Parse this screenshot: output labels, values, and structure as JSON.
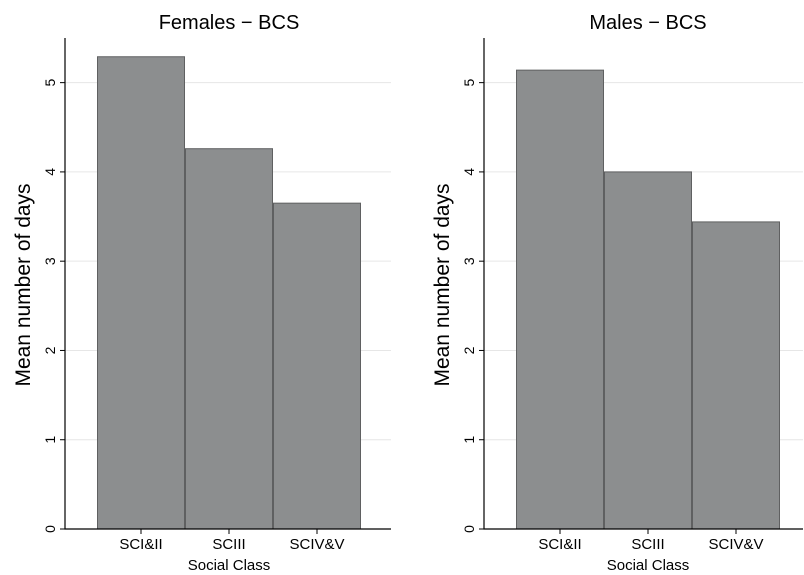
{
  "chart_data": [
    {
      "type": "bar",
      "title": "Females − BCS",
      "xlabel": "Social Class",
      "ylabel": "Mean number of days",
      "categories": [
        "SCI&II",
        "SCIII",
        "SCIV&V"
      ],
      "values": [
        5.29,
        4.26,
        3.65
      ],
      "ylim": [
        0,
        5.5
      ],
      "yticks": [
        "0",
        "1",
        "2",
        "3",
        "4",
        "5"
      ],
      "grid": true,
      "bar_color": "#8c8e8f"
    },
    {
      "type": "bar",
      "title": "Males − BCS",
      "xlabel": "Social Class",
      "ylabel": "Mean number of days",
      "categories": [
        "SCI&II",
        "SCIII",
        "SCIV&V"
      ],
      "values": [
        5.14,
        4.0,
        3.44
      ],
      "ylim": [
        0,
        5.5
      ],
      "yticks": [
        "0",
        "1",
        "2",
        "3",
        "4",
        "5"
      ],
      "grid": true,
      "bar_color": "#8c8e8f"
    }
  ]
}
